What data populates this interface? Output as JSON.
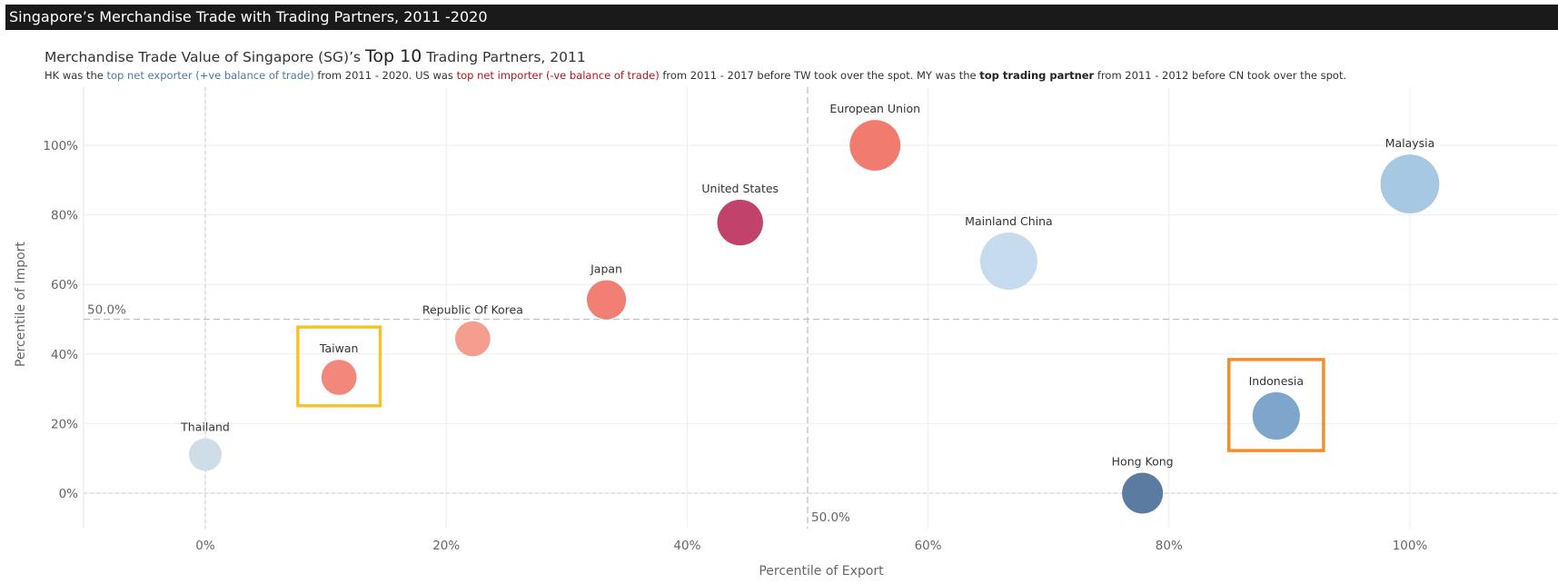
{
  "header": {
    "title": "Singapore’s Merchandise Trade with Trading Partners, 2011 -2020"
  },
  "title": {
    "prefix": "Merchandise Trade Value of Singapore (SG)’s ",
    "emphasis": "Top 10",
    "suffix": " Trading Partners, 2011"
  },
  "subtitle": {
    "p1": "HK was the ",
    "p2": "top net exporter (+ve balance of trade)",
    "p3": " from 2011 - 2020. US was ",
    "p4": "top net importer (-ve balance of trade)",
    "p5": " from 2011 - 2017 before TW took over the spot. MY was the ",
    "p6": "top trading partner",
    "p7": " from 2011 - 2012 before CN took over the spot."
  },
  "colors": {
    "header_bg": "#1a1a1a",
    "highlight_taiwan": "#f4c430",
    "highlight_indonesia": "#f28e2b"
  },
  "chart_data": {
    "type": "scatter",
    "xlabel": "Percentile of Export",
    "ylabel": "Percentile of Import",
    "xlim": [
      -0.1,
      1.12
    ],
    "ylim": [
      -0.1,
      1.12
    ],
    "xticks": [
      {
        "v": 0,
        "label": "0%"
      },
      {
        "v": 0.2,
        "label": "20%"
      },
      {
        "v": 0.4,
        "label": "40%"
      },
      {
        "v": 0.6,
        "label": "60%"
      },
      {
        "v": 0.8,
        "label": "80%"
      },
      {
        "v": 1.0,
        "label": "100%"
      }
    ],
    "yticks": [
      {
        "v": 0,
        "label": "0%"
      },
      {
        "v": 0.2,
        "label": "20%"
      },
      {
        "v": 0.4,
        "label": "40%"
      },
      {
        "v": 0.6,
        "label": "60%"
      },
      {
        "v": 0.8,
        "label": "80%"
      },
      {
        "v": 1.0,
        "label": "100%"
      }
    ],
    "reference_lines": {
      "x": 0.5,
      "y": 0.5,
      "x_label": "50.0%",
      "y_label": "50.0%"
    },
    "grid": true,
    "points": [
      {
        "name": "Thailand",
        "x": 0.0,
        "y": 0.111,
        "size": 0.4,
        "color": "#cfdde7"
      },
      {
        "name": "Taiwan",
        "x": 0.111,
        "y": 0.333,
        "size": 0.43,
        "color": "#f3877b",
        "highlight": "#f4c430"
      },
      {
        "name": "Republic Of Korea",
        "x": 0.222,
        "y": 0.444,
        "size": 0.43,
        "color": "#f59e8f"
      },
      {
        "name": "Japan",
        "x": 0.333,
        "y": 0.556,
        "size": 0.48,
        "color": "#f17f74"
      },
      {
        "name": "United States",
        "x": 0.444,
        "y": 0.778,
        "size": 0.56,
        "color": "#c1436b"
      },
      {
        "name": "European Union",
        "x": 0.556,
        "y": 1.0,
        "size": 0.62,
        "color": "#f27b6f"
      },
      {
        "name": "Mainland China",
        "x": 0.667,
        "y": 0.667,
        "size": 0.7,
        "color": "#c6dcee"
      },
      {
        "name": "Hong Kong",
        "x": 0.778,
        "y": 0.0,
        "size": 0.5,
        "color": "#5b7ba0"
      },
      {
        "name": "Indonesia",
        "x": 0.889,
        "y": 0.222,
        "size": 0.58,
        "color": "#7ea5cb",
        "highlight": "#f28e2b"
      },
      {
        "name": "Malaysia",
        "x": 1.0,
        "y": 0.889,
        "size": 0.72,
        "color": "#a6c8e3"
      }
    ]
  }
}
